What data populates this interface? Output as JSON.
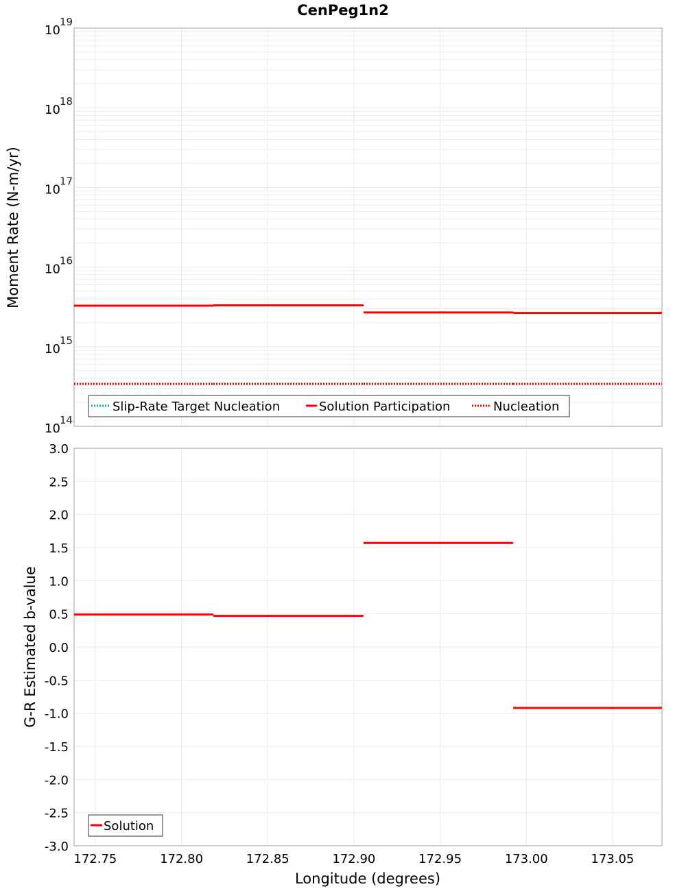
{
  "chart_data": [
    {
      "type": "line",
      "subtype": "step",
      "title": "CenPeg1n2",
      "xlabel": "Longitude (degrees)",
      "ylabel": "Moment Rate (N-m/yr)",
      "yscale": "log",
      "ylim": [
        100000000000000.0,
        1e+19
      ],
      "xlim": [
        172.7377,
        173.0787
      ],
      "y_ticks": [
        {
          "base": "10",
          "exp": "19",
          "value": 1e+19
        },
        {
          "base": "10",
          "exp": "18",
          "value": 1e+18
        },
        {
          "base": "10",
          "exp": "17",
          "value": 1e+17
        },
        {
          "base": "10",
          "exp": "16",
          "value": 1e+16
        },
        {
          "base": "10",
          "exp": "15",
          "value": 1000000000000000.0
        },
        {
          "base": "10",
          "exp": "14",
          "value": 100000000000000.0
        }
      ],
      "grid": true,
      "legend_position": "lower-left",
      "series": [
        {
          "name": "Slip-Rate Target Nucleation",
          "color": "#00b0c0",
          "style": "dotted",
          "segments": [
            {
              "x0": 172.7377,
              "x1": 172.8185,
              "y": 341000000000000.0
            },
            {
              "x0": 172.8185,
              "x1": 172.9056,
              "y": 341000000000000.0
            },
            {
              "x0": 172.9056,
              "x1": 172.9924,
              "y": 341000000000000.0
            },
            {
              "x0": 172.9924,
              "x1": 173.0787,
              "y": 341000000000000.0
            }
          ]
        },
        {
          "name": "Solution Participation",
          "color": "#ff0000",
          "style": "solid",
          "segments": [
            {
              "x0": 172.7377,
              "x1": 172.8185,
              "y": 3270000000000000.0
            },
            {
              "x0": 172.8185,
              "x1": 172.9056,
              "y": 3300000000000000.0
            },
            {
              "x0": 172.9056,
              "x1": 172.9924,
              "y": 2690000000000000.0
            },
            {
              "x0": 172.9924,
              "x1": 173.0787,
              "y": 2650000000000000.0
            }
          ]
        },
        {
          "name": "Nucleation",
          "color": "#ff0000",
          "style": "dotted",
          "segments": [
            {
              "x0": 172.7377,
              "x1": 172.8185,
              "y": 341000000000000.0
            },
            {
              "x0": 172.8185,
              "x1": 172.9056,
              "y": 341000000000000.0
            },
            {
              "x0": 172.9056,
              "x1": 172.9924,
              "y": 341000000000000.0
            },
            {
              "x0": 172.9924,
              "x1": 173.0787,
              "y": 341000000000000.0
            }
          ]
        }
      ]
    },
    {
      "type": "line",
      "subtype": "step",
      "title": "",
      "xlabel": "Longitude (degrees)",
      "ylabel": "G-R Estimated b-value",
      "yscale": "linear",
      "ylim": [
        -3.0,
        3.0
      ],
      "xlim": [
        172.7377,
        173.0787
      ],
      "y_ticks": [
        "3.0",
        "2.5",
        "2.0",
        "1.5",
        "1.0",
        "0.5",
        "0.0",
        "-0.5",
        "-1.0",
        "-1.5",
        "-2.0",
        "-2.5",
        "-3.0"
      ],
      "x_ticks": [
        "172.75",
        "172.80",
        "172.85",
        "172.90",
        "172.95",
        "173.00",
        "173.05"
      ],
      "grid": true,
      "legend_position": "lower-left",
      "series": [
        {
          "name": "Solution",
          "color": "#ff0000",
          "style": "solid",
          "segments": [
            {
              "x0": 172.7377,
              "x1": 172.8185,
              "y": 0.49
            },
            {
              "x0": 172.8185,
              "x1": 172.9056,
              "y": 0.47
            },
            {
              "x0": 172.9056,
              "x1": 172.9924,
              "y": 1.57
            },
            {
              "x0": 172.9924,
              "x1": 173.0787,
              "y": -0.92
            }
          ]
        }
      ]
    }
  ],
  "colors": {
    "grid": "#ebebeb",
    "frame": "#b0b0b0",
    "legend_border": "#555555"
  }
}
